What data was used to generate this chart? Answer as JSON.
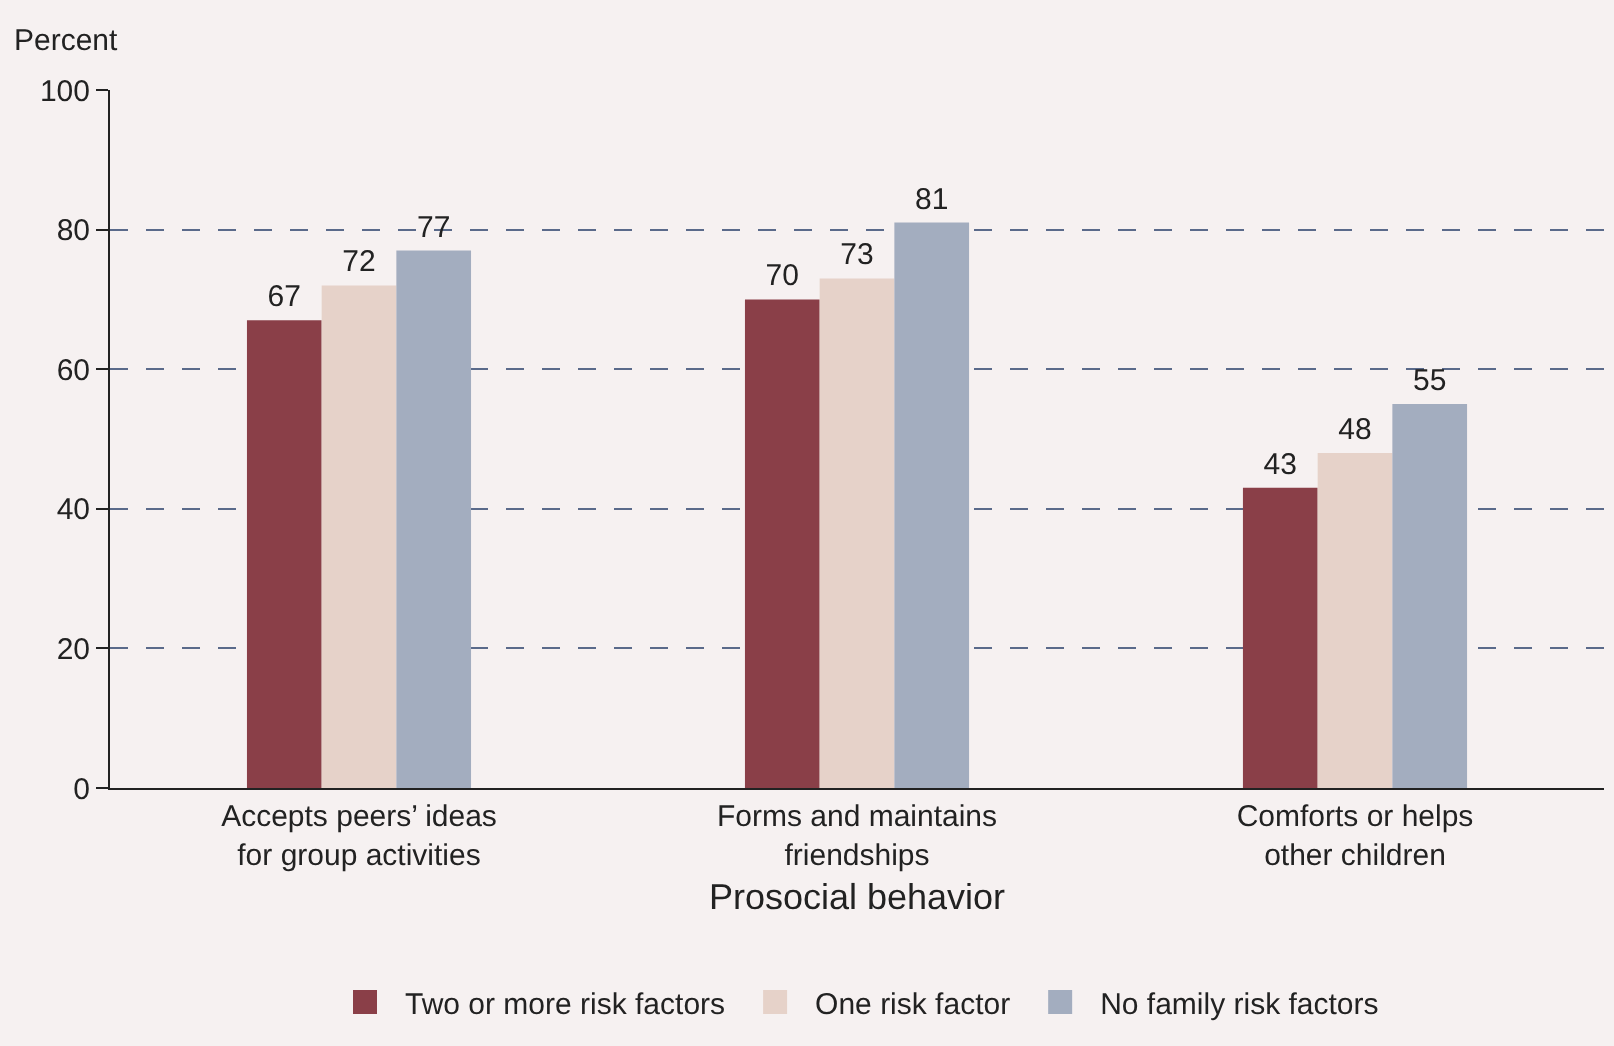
{
  "chart_data": {
    "type": "bar",
    "categories": [
      "Accepts peers’ ideas\nfor group activities",
      "Forms and maintains\nfriendships",
      "Comforts or helps\nother children"
    ],
    "series": [
      {
        "name": "Two or more risk factors",
        "color": "#8a3f48",
        "values": [
          67,
          70,
          43
        ]
      },
      {
        "name": "One risk factor",
        "color": "#e6d2c9",
        "values": [
          72,
          73,
          48
        ]
      },
      {
        "name": "No family risk factors",
        "color": "#a3adbf",
        "values": [
          77,
          81,
          55
        ]
      }
    ],
    "ylabel": "Percent",
    "xlabel": "Prosocial behavior",
    "ylim": [
      0,
      100
    ],
    "yticks": [
      0,
      20,
      40,
      60,
      80,
      100
    ],
    "grid": "y",
    "legend": "bottom",
    "data_labels": true
  }
}
